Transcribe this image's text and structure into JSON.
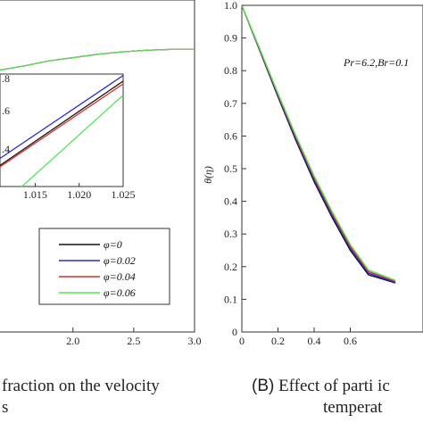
{
  "colors": {
    "black": "#111111",
    "blue": "#2b2bd9",
    "red": "#d9302f",
    "green": "#55e655"
  },
  "chart_data": [
    {
      "type": "line",
      "panel": "A",
      "xlabel": "",
      "ylabel": "",
      "xlim": [
        1.4,
        3.0
      ],
      "ylim": [
        0.0,
        1.0
      ],
      "xticks": [
        "2.0",
        "2.5",
        "3.0"
      ],
      "legend_placement": "lower-right",
      "series": [
        {
          "name": "φ=0",
          "color": "#111111",
          "x": [
            1.4,
            1.6,
            1.8,
            2.0,
            2.2,
            2.4,
            2.6,
            2.8,
            3.0
          ],
          "y": [
            0.975,
            0.98,
            0.986,
            0.99,
            0.994,
            0.997,
            0.999,
            1.0,
            1.0
          ]
        },
        {
          "name": "φ=0.02",
          "color": "#2b2bd9",
          "x": [
            1.4,
            1.6,
            1.8,
            2.0,
            2.2,
            2.4,
            2.6,
            2.8,
            3.0
          ],
          "y": [
            0.975,
            0.98,
            0.986,
            0.99,
            0.994,
            0.997,
            0.999,
            1.0,
            1.0
          ]
        },
        {
          "name": "φ=0.04",
          "color": "#d9302f",
          "x": [
            1.4,
            1.6,
            1.8,
            2.0,
            2.2,
            2.4,
            2.6,
            2.8,
            3.0
          ],
          "y": [
            0.975,
            0.98,
            0.986,
            0.99,
            0.994,
            0.997,
            0.999,
            1.0,
            1.0
          ]
        },
        {
          "name": "φ=0.06",
          "color": "#55e655",
          "x": [
            1.4,
            1.6,
            1.8,
            2.0,
            2.2,
            2.4,
            2.6,
            2.8,
            3.0
          ],
          "y": [
            0.975,
            0.98,
            0.986,
            0.99,
            0.994,
            0.997,
            0.999,
            1.0,
            1.0
          ]
        }
      ],
      "inset": {
        "xlim": [
          1.011,
          1.025
        ],
        "ylim": [
          0.81,
          0.89
        ],
        "xticks": [
          "1.015",
          "1.020",
          "1.025"
        ],
        "yticks": [
          ".8",
          ".6",
          ".4"
        ],
        "series": [
          {
            "color": "#2b2bd9",
            "x": [
              1.011,
              1.025
            ],
            "y": [
              0.83,
              0.889
            ]
          },
          {
            "color": "#111111",
            "x": [
              1.011,
              1.025
            ],
            "y": [
              0.825,
              0.885
            ]
          },
          {
            "color": "#d9302f",
            "x": [
              1.011,
              1.025
            ],
            "y": [
              0.824,
              0.883
            ]
          },
          {
            "color": "#55e655",
            "x": [
              1.0135,
              1.025
            ],
            "y": [
              0.81,
              0.875
            ]
          }
        ]
      }
    },
    {
      "type": "line",
      "panel": "B",
      "xlabel": "",
      "ylabel": "θ(η)",
      "xlim": [
        0.0,
        0.85
      ],
      "ylim": [
        0.0,
        1.0
      ],
      "xticks": [
        "0",
        "0.2",
        "0.4",
        "0.6"
      ],
      "yticks": [
        "0",
        "0.1",
        "0.2",
        "0.3",
        "0.4",
        "0.5",
        "0.6",
        "0.7",
        "0.8",
        "0.9",
        "1.0"
      ],
      "annotation": "Pr=6.2,Br=0.1",
      "series": [
        {
          "name": "φ=0",
          "color": "#111111",
          "x": [
            0.0,
            0.1,
            0.2,
            0.3,
            0.4,
            0.5,
            0.6,
            0.7,
            0.85
          ],
          "y": [
            1.0,
            0.86,
            0.72,
            0.585,
            0.46,
            0.35,
            0.25,
            0.175,
            0.15
          ]
        },
        {
          "name": "φ=0.02",
          "color": "#2b2bd9",
          "x": [
            0.0,
            0.1,
            0.2,
            0.3,
            0.4,
            0.5,
            0.6,
            0.7,
            0.85
          ],
          "y": [
            1.0,
            0.862,
            0.723,
            0.59,
            0.466,
            0.356,
            0.256,
            0.18,
            0.152
          ]
        },
        {
          "name": "φ=0.04",
          "color": "#d9302f",
          "x": [
            0.0,
            0.1,
            0.2,
            0.3,
            0.4,
            0.5,
            0.6,
            0.7,
            0.85
          ],
          "y": [
            1.0,
            0.864,
            0.727,
            0.595,
            0.472,
            0.362,
            0.262,
            0.185,
            0.155
          ]
        },
        {
          "name": "φ=0.06",
          "color": "#55e655",
          "x": [
            0.0,
            0.1,
            0.2,
            0.3,
            0.4,
            0.5,
            0.6,
            0.7,
            0.85
          ],
          "y": [
            1.0,
            0.866,
            0.731,
            0.6,
            0.478,
            0.368,
            0.268,
            0.19,
            0.158
          ]
        }
      ]
    }
  ],
  "captions": {
    "left_line1": "fraction on the velocity",
    "left_line2": "s",
    "right_mark": "(B)",
    "right_line1": " Effect of parti ic",
    "right_line2": "temperat"
  }
}
